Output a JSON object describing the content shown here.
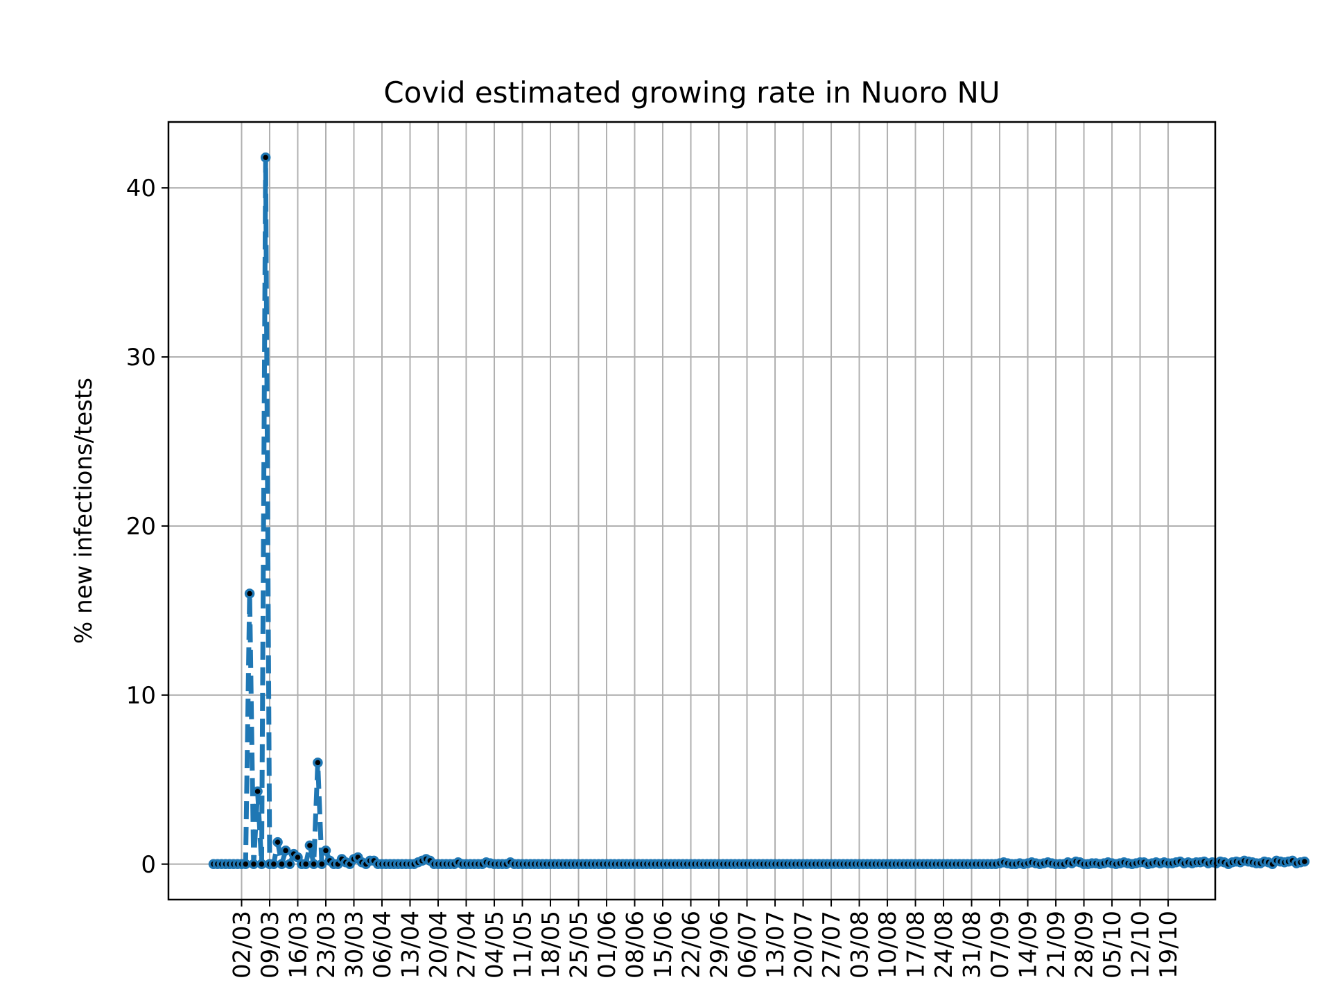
{
  "chart_data": {
    "type": "line",
    "title": "Covid estimated growing rate in Nuoro NU",
    "xlabel": "",
    "ylabel": "% new infections/tests",
    "x_tick_labels": [
      "02/03",
      "09/03",
      "16/03",
      "23/03",
      "30/03",
      "06/04",
      "13/04",
      "20/04",
      "27/04",
      "04/05",
      "11/05",
      "18/05",
      "25/05",
      "01/06",
      "08/06",
      "15/06",
      "22/06",
      "29/06",
      "06/07",
      "13/07",
      "20/07",
      "27/07",
      "03/08",
      "10/08",
      "17/08",
      "24/08",
      "31/08",
      "07/09",
      "14/09",
      "21/09",
      "28/09",
      "05/10",
      "12/10",
      "19/10"
    ],
    "y_ticks": [
      0,
      10,
      20,
      30,
      40
    ],
    "ylim": [
      -2.1,
      43.9
    ],
    "grid": true,
    "line_style": "dashed",
    "markers": "circle",
    "colors": {
      "line": "#1f77b4",
      "marker_edge": "#1f77b4",
      "marker_center": "#000000",
      "grid": "#b0b0b0"
    },
    "series": [
      {
        "start_date": "24/02",
        "values": [
          0,
          0,
          0,
          0,
          0,
          0,
          0,
          0,
          0,
          16.0,
          0,
          4.3,
          0,
          41.8,
          0,
          0,
          1.3,
          0,
          0.8,
          0,
          0.6,
          0.4,
          0,
          0,
          1.1,
          0,
          6.0,
          0,
          0.8,
          0.2,
          0,
          0,
          0.3,
          0.1,
          0,
          0.3,
          0.4,
          0.1,
          0,
          0.2,
          0.2,
          0,
          0,
          0,
          0,
          0,
          0,
          0,
          0,
          0,
          0,
          0.1,
          0.2,
          0.3,
          0.2,
          0,
          0,
          0,
          0,
          0,
          0,
          0.1,
          0,
          0,
          0,
          0,
          0,
          0,
          0.1,
          0.05,
          0,
          0,
          0,
          0,
          0.1,
          0,
          0,
          0,
          0,
          0,
          0,
          0,
          0,
          0,
          0,
          0,
          0,
          0,
          0,
          0,
          0,
          0,
          0,
          0,
          0,
          0,
          0,
          0,
          0,
          0,
          0,
          0,
          0,
          0,
          0,
          0,
          0,
          0,
          0,
          0,
          0,
          0,
          0,
          0,
          0,
          0,
          0,
          0,
          0,
          0,
          0,
          0,
          0,
          0,
          0,
          0,
          0,
          0,
          0,
          0,
          0,
          0,
          0,
          0,
          0,
          0,
          0,
          0,
          0,
          0,
          0,
          0,
          0,
          0,
          0,
          0,
          0,
          0,
          0,
          0,
          0,
          0,
          0,
          0,
          0,
          0,
          0,
          0,
          0,
          0,
          0,
          0,
          0,
          0,
          0,
          0,
          0,
          0,
          0,
          0,
          0,
          0,
          0,
          0,
          0,
          0,
          0,
          0,
          0,
          0,
          0,
          0,
          0,
          0,
          0,
          0,
          0,
          0,
          0,
          0,
          0,
          0,
          0,
          0,
          0,
          0,
          0.05,
          0.1,
          0.05,
          0,
          0,
          0.05,
          0,
          0.05,
          0.1,
          0.05,
          0,
          0.05,
          0.1,
          0.05,
          0,
          0,
          0,
          0.1,
          0.05,
          0.15,
          0.1,
          0,
          0,
          0.05,
          0.05,
          0,
          0.05,
          0.1,
          0.05,
          0,
          0.05,
          0.1,
          0.05,
          0,
          0.05,
          0.1,
          0.1,
          0,
          0.05,
          0.1,
          0.05,
          0.1,
          0.05,
          0.05,
          0.1,
          0.15,
          0.05,
          0.1,
          0.05,
          0.1,
          0.1,
          0.15,
          0.05,
          0.1,
          0.05,
          0.15,
          0.1,
          0,
          0.1,
          0.15,
          0.1,
          0.2,
          0.15,
          0.1,
          0.05,
          0.05,
          0.15,
          0.1,
          0,
          0.2,
          0.15,
          0.1,
          0.15,
          0.2,
          0.05,
          0.1,
          0.15
        ]
      }
    ]
  }
}
